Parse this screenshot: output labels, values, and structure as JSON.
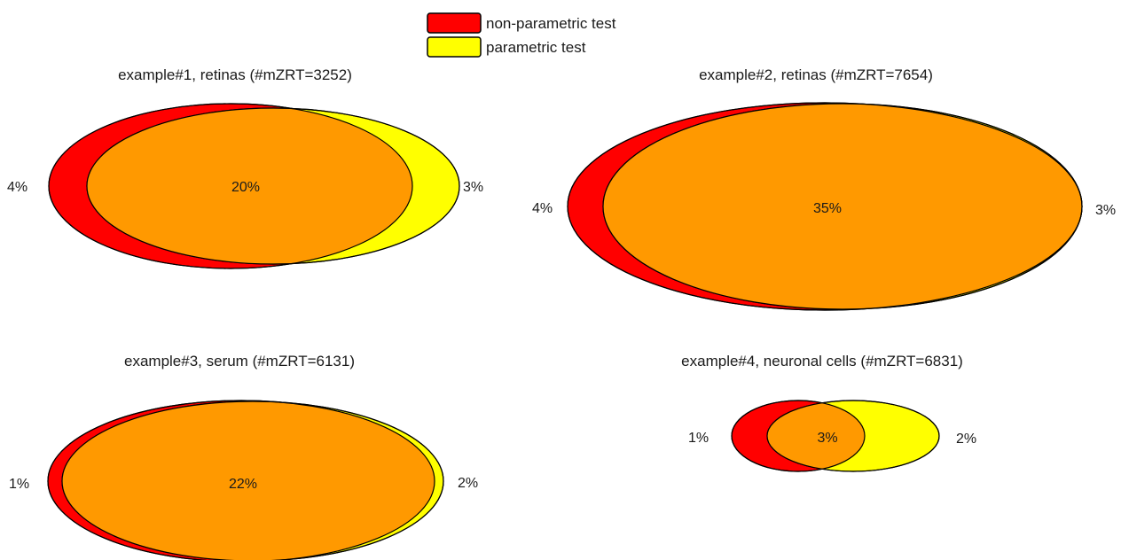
{
  "legend": {
    "items": [
      {
        "label": "non-parametric test",
        "color": "#ff0000"
      },
      {
        "label": "parametric test",
        "color": "#ffff00"
      }
    ]
  },
  "overlap_color": "#ff9900",
  "chart_data": [
    {
      "type": "venn",
      "title": "example#1, retinas (#mZRT=3252)",
      "sets": [
        "non-parametric test",
        "parametric test"
      ],
      "only_non_parametric": "4%",
      "both": "20%",
      "only_parametric": "3%"
    },
    {
      "type": "venn",
      "title": "example#2, retinas (#mZRT=7654)",
      "sets": [
        "non-parametric test",
        "parametric test"
      ],
      "only_non_parametric": "4%",
      "both": "35%",
      "only_parametric": "3%"
    },
    {
      "type": "venn",
      "title": "example#3, serum (#mZRT=6131)",
      "sets": [
        "non-parametric test",
        "parametric test"
      ],
      "only_non_parametric": "1%",
      "both": "22%",
      "only_parametric": "2%"
    },
    {
      "type": "venn",
      "title": "example#4, neuronal cells (#mZRT=6831)",
      "sets": [
        "non-parametric test",
        "parametric test"
      ],
      "only_non_parametric": "1%",
      "both": "3%",
      "only_parametric": "2%"
    }
  ]
}
